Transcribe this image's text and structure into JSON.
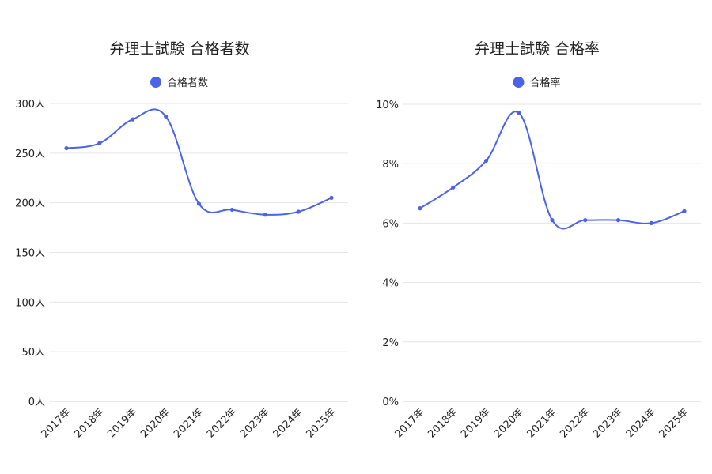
{
  "chart_data": [
    {
      "type": "line",
      "title": "弁理士試験 合格者数",
      "categories": [
        "2017年",
        "2018年",
        "2019年",
        "2020年",
        "2021年",
        "2022年",
        "2023年",
        "2024年",
        "2025年"
      ],
      "series": [
        {
          "name": "合格者数",
          "values": [
            255,
            260,
            284,
            287,
            199,
            193,
            188,
            191,
            205
          ]
        }
      ],
      "yticks": [
        "0人",
        "50人",
        "100人",
        "150人",
        "200人",
        "250人",
        "300人"
      ],
      "ylim": [
        0,
        300
      ],
      "color": "#4a63e8",
      "legend": "top-center",
      "grid": true
    },
    {
      "type": "line",
      "title": "弁理士試験 合格率",
      "categories": [
        "2017年",
        "2018年",
        "2019年",
        "2020年",
        "2021年",
        "2022年",
        "2023年",
        "2024年",
        "2025年"
      ],
      "series": [
        {
          "name": "合格率",
          "values": [
            6.5,
            7.2,
            8.1,
            9.7,
            6.1,
            6.1,
            6.1,
            6.0,
            6.4
          ]
        }
      ],
      "yticks": [
        "0%",
        "2%",
        "4%",
        "6%",
        "8%",
        "10%"
      ],
      "ylim": [
        0,
        10
      ],
      "color": "#4a63e8",
      "legend": "top-center",
      "grid": true
    }
  ]
}
